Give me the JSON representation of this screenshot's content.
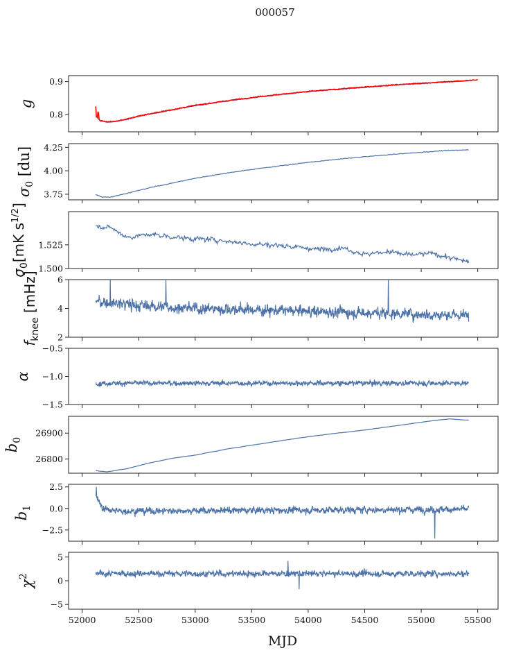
{
  "title": "000057",
  "xlabel": "MJD",
  "chart_data": {
    "type": "line",
    "x_range": [
      51880,
      55680
    ],
    "x_ticks": [
      52000,
      52500,
      53000,
      53500,
      54000,
      54500,
      55000,
      55500
    ],
    "series_color": "#4c72a8",
    "overlay_color": "#ff0000",
    "panels": [
      {
        "id": "g",
        "ylabel": "g",
        "ylim": [
          0.748,
          0.918
        ],
        "yticks": [
          0.8,
          0.9
        ],
        "ytick_labels": [
          "0.8",
          "0.9"
        ],
        "series": [
          {
            "x": [
              52120,
              52160,
              52220,
              52300,
              52400,
              52500,
              52700,
              53000,
              53300,
              53600,
              54000,
              54400,
              54800,
              55200,
              55420
            ],
            "y": [
              0.795,
              0.781,
              0.777,
              0.779,
              0.786,
              0.795,
              0.808,
              0.827,
              0.842,
              0.855,
              0.869,
              0.88,
              0.89,
              0.898,
              0.903
            ],
            "noise": 0.0015
          }
        ],
        "overlay": {
          "x": [
            52120,
            52160,
            52220,
            52300,
            52400,
            52500,
            52700,
            53000,
            53300,
            53600,
            54000,
            54400,
            54800,
            55200,
            55500
          ],
          "y": [
            0.797,
            0.782,
            0.778,
            0.78,
            0.787,
            0.796,
            0.809,
            0.828,
            0.843,
            0.856,
            0.87,
            0.881,
            0.891,
            0.899,
            0.905
          ],
          "noise": 0.0015,
          "spike_at_start": 0.825
        }
      },
      {
        "id": "sigma0_du",
        "ylabel": "σ0 [du]",
        "ylim": [
          3.69,
          4.29
        ],
        "yticks": [
          3.75,
          4.0,
          4.25
        ],
        "ytick_labels": [
          "3.75",
          "4.00",
          "4.25"
        ],
        "series": [
          {
            "x": [
              52120,
              52180,
              52250,
              52400,
              52600,
              52800,
              53000,
              53300,
              53600,
              54000,
              54400,
              54800,
              55200,
              55420
            ],
            "y": [
              3.745,
              3.72,
              3.72,
              3.76,
              3.82,
              3.87,
              3.92,
              3.98,
              4.03,
              4.09,
              4.14,
              4.18,
              4.215,
              4.225
            ],
            "noise": 0.004
          }
        ]
      },
      {
        "id": "sigma0_mk",
        "ylabel": "σ0[mK s1/2]",
        "ylim": [
          1.5,
          1.56
        ],
        "yticks": [
          1.5,
          1.525
        ],
        "ytick_labels": [
          "1.500",
          "1.525"
        ],
        "series": [
          {
            "x": [
              52120,
              52250,
              52400,
              52600,
              52900,
              53200,
              53500,
              53800,
              54100,
              54300,
              54500,
              54700,
              54900,
              55100,
              55300,
              55420
            ],
            "y": [
              1.545,
              1.543,
              1.533,
              1.536,
              1.532,
              1.53,
              1.526,
              1.524,
              1.52,
              1.522,
              1.515,
              1.518,
              1.514,
              1.516,
              1.51,
              1.507
            ],
            "noise": 0.003
          }
        ]
      },
      {
        "id": "fknee",
        "ylabel": "fknee [mHz]",
        "ylim": [
          2,
          6
        ],
        "yticks": [
          2,
          4,
          6
        ],
        "ytick_labels": [
          "2",
          "4",
          "6"
        ],
        "series": [
          {
            "x": [
              52120,
              52500,
              53000,
              53500,
              54000,
              54500,
              55000,
              55420
            ],
            "y": [
              4.5,
              4.2,
              4.0,
              3.9,
              3.8,
              3.7,
              3.6,
              3.5
            ],
            "noise": 0.45,
            "spikes": [
              [
                52250,
                6.0
              ],
              [
                52740,
                6.0
              ],
              [
                54710,
                6.0
              ]
            ]
          }
        ]
      },
      {
        "id": "alpha",
        "ylabel": "α",
        "ylim": [
          -1.5,
          -0.5
        ],
        "yticks": [
          -1.5,
          -1.0,
          -0.5
        ],
        "ytick_labels": [
          "−1.5",
          "−1.0",
          "−0.5"
        ],
        "series": [
          {
            "x": [
              52120,
              55420
            ],
            "y": [
              -1.12,
              -1.12
            ],
            "noise": 0.05
          }
        ]
      },
      {
        "id": "b0",
        "ylabel": "b0",
        "ylim": [
          26745,
          26965
        ],
        "yticks": [
          26800,
          26900
        ],
        "ytick_labels": [
          "26800",
          "26900"
        ],
        "series": [
          {
            "x": [
              52120,
              52220,
              52400,
              52600,
              52800,
              53000,
              53300,
              53600,
              53900,
              54200,
              54500,
              54800,
              55100,
              55250,
              55420
            ],
            "y": [
              26755,
              26750,
              26763,
              26785,
              26803,
              26815,
              26840,
              26860,
              26880,
              26897,
              26912,
              26930,
              26948,
              26955,
              26950
            ],
            "noise": 0.6
          }
        ]
      },
      {
        "id": "b1",
        "ylabel": "b1",
        "ylim": [
          -3.8,
          2.8
        ],
        "yticks": [
          -2.5,
          0.0,
          2.5
        ],
        "ytick_labels": [
          "−2.5",
          "0.0",
          "2.5"
        ],
        "series": [
          {
            "x": [
              52120,
              52180,
              52300,
              55420
            ],
            "y": [
              1.5,
              0.0,
              -0.3,
              -0.1
            ],
            "noise": 0.45,
            "spikes": [
              [
                52125,
                2.5
              ],
              [
                55120,
                -3.5
              ]
            ]
          }
        ]
      },
      {
        "id": "chi2",
        "ylabel": "χ2",
        "ylim": [
          -6,
          6
        ],
        "yticks": [
          -5,
          0,
          5
        ],
        "ytick_labels": [
          "−5",
          "0",
          "5"
        ],
        "series": [
          {
            "x": [
              52120,
              55420
            ],
            "y": [
              1.5,
              1.5
            ],
            "noise": 0.75,
            "spikes": [
              [
                53920,
                -1.8
              ],
              [
                53820,
                4.2
              ]
            ]
          }
        ]
      }
    ]
  }
}
